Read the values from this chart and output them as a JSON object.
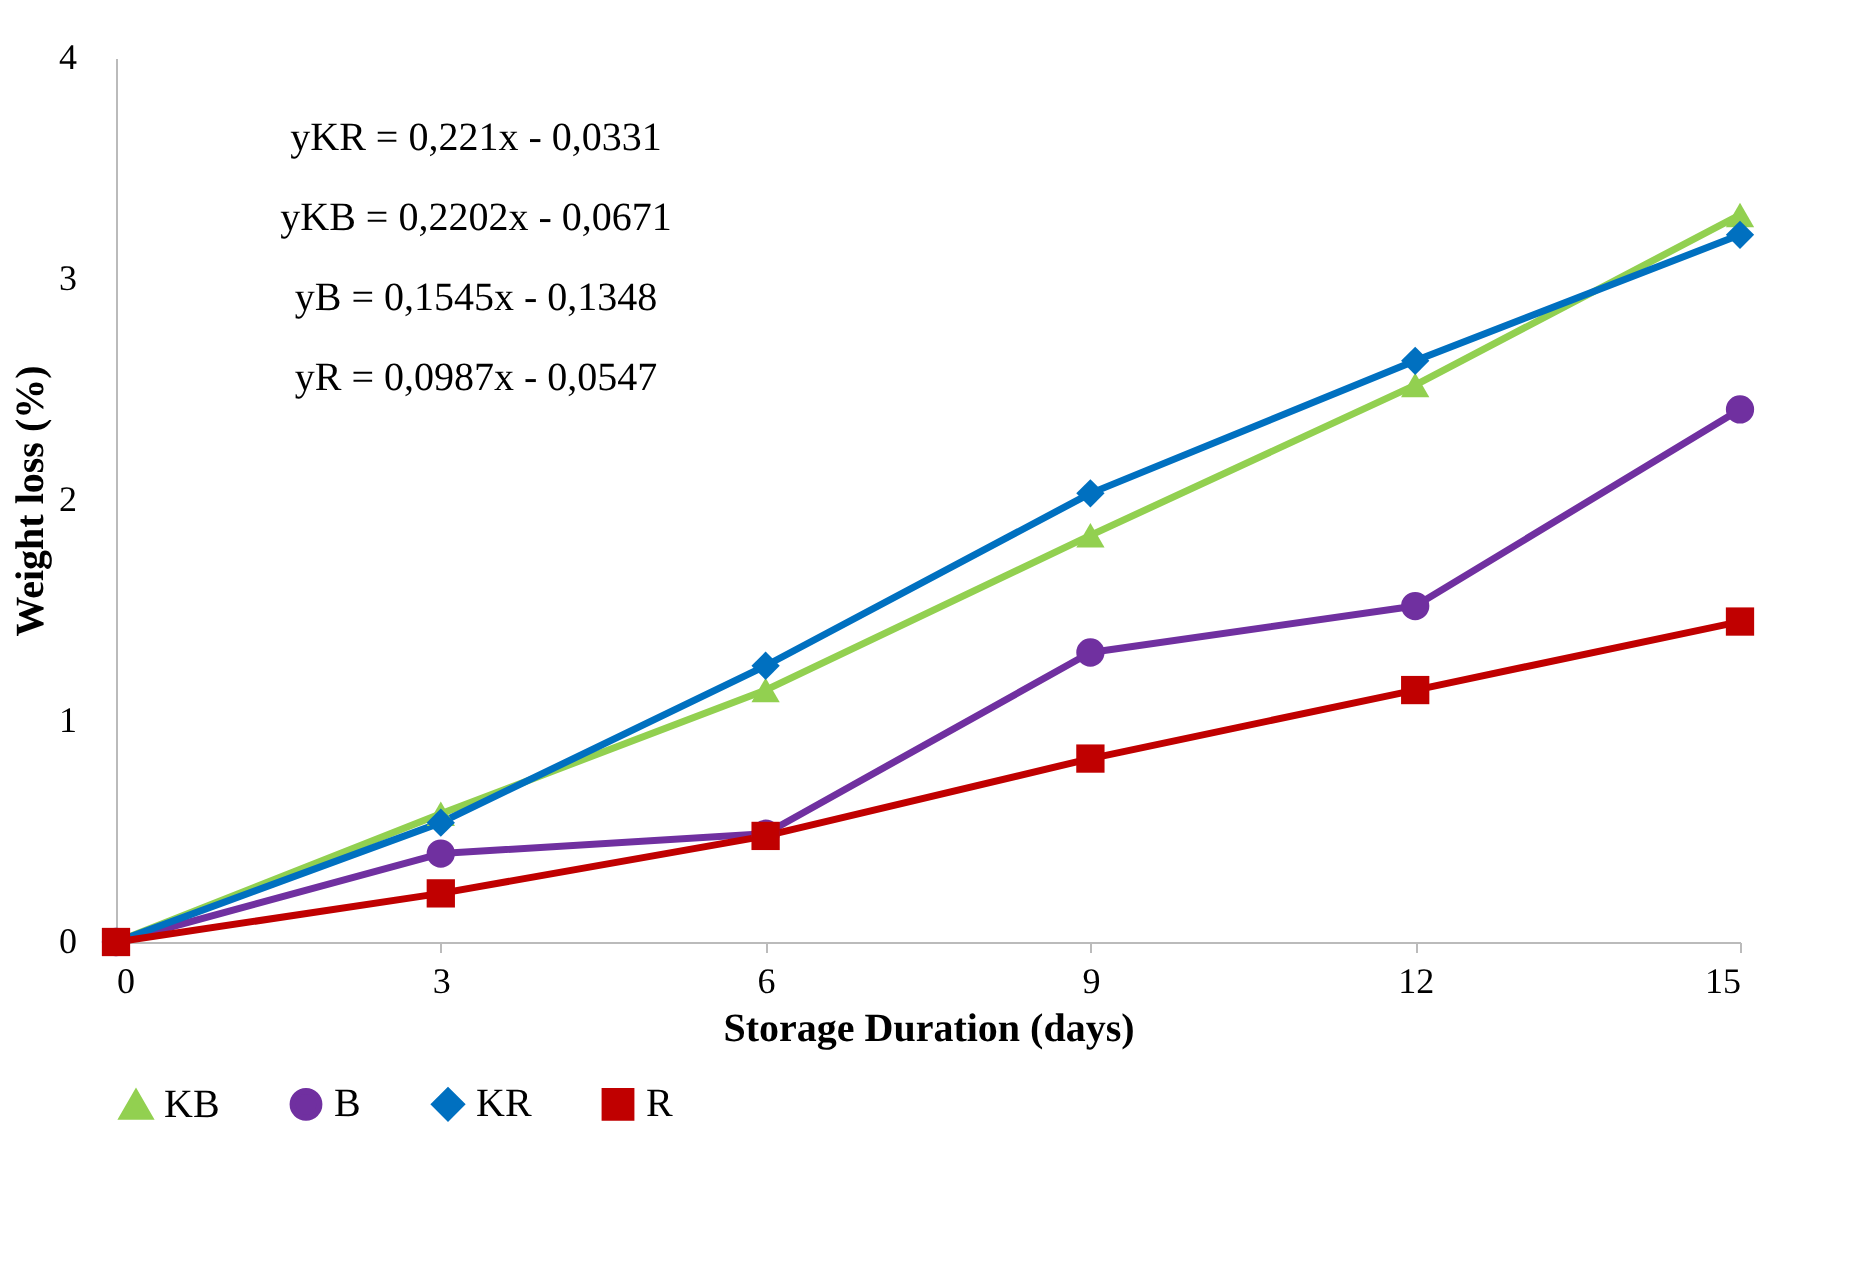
{
  "chart_data": {
    "type": "line",
    "xlabel": "Storage Duration (days)",
    "ylabel": "Weight loss (%)",
    "x": [
      0,
      3,
      6,
      9,
      12,
      15
    ],
    "xlim": [
      0,
      15
    ],
    "xticks": [
      0,
      3,
      6,
      9,
      12,
      15
    ],
    "ylim": [
      0,
      4
    ],
    "yticks": [
      0,
      1,
      2,
      3,
      4
    ],
    "grid": false,
    "legend": "bottom",
    "annotations": [
      "yKR = 0,221x - 0,0331",
      "yKB = 0,2202x - 0,0671",
      "yB = 0,1545x - 0,1348",
      "yR = 0,0987x - 0,0547"
    ],
    "series": [
      {
        "name": "KB",
        "color": "#92d050",
        "marker": "triangle",
        "values": [
          0,
          0.58,
          1.14,
          1.84,
          2.52,
          3.29
        ]
      },
      {
        "name": "B",
        "color": "#7030a0",
        "marker": "circle",
        "values": [
          0,
          0.4,
          0.49,
          1.31,
          1.52,
          2.41
        ]
      },
      {
        "name": "KR",
        "color": "#0070c0",
        "marker": "diamond",
        "values": [
          0,
          0.54,
          1.25,
          2.03,
          2.63,
          3.2
        ]
      },
      {
        "name": "R",
        "color": "#c00000",
        "marker": "square",
        "values": [
          0,
          0.22,
          0.48,
          0.83,
          1.14,
          1.45
        ]
      }
    ]
  }
}
